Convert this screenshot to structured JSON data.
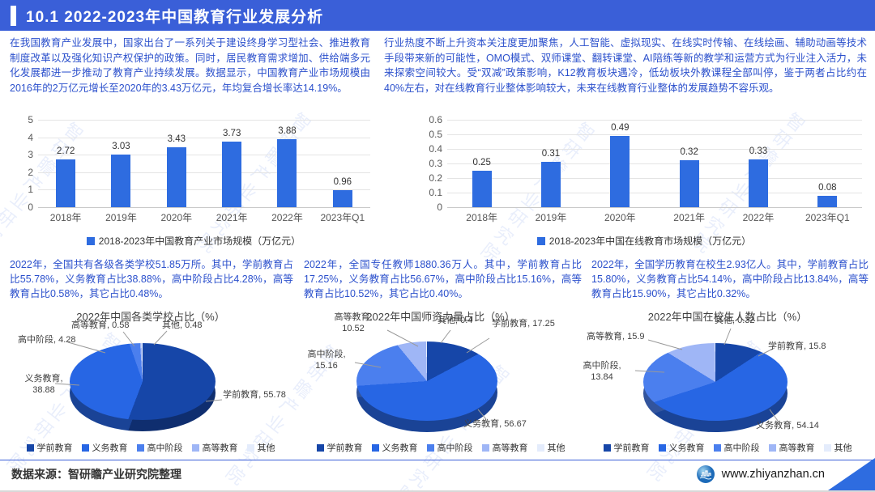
{
  "header": {
    "title": "10.1  2022-2023年中国教育行业发展分析"
  },
  "intro": {
    "left": "在我国教育产业发展中，国家出台了一系列关于建设终身学习型社会、推进教育制度改革以及强化知识产权保护的政策。同时，居民教育需求增加、供给端多元化发展都进一步推动了教育产业持续发展。数据显示，中国教育产业市场规模由2016年的2万亿元增长至2020年的3.43万亿元，年均复合增长率达14.19%。",
    "right": "行业热度不断上升资本关注度更加聚焦，人工智能、虚拟现实、在线实时传输、在线绘画、辅助动画等技术手段带来新的可能性，OMO模式、双师课堂、翻转课堂、AI陪练等新的教学和运营方式为行业注入活力，未来探索空间较大。受“双减”政策影响，K12教育板块遇冷，低幼板块外教课程全部叫停，鉴于两者占比约在40%左右，对在线教育行业整体影响较大，未来在线教育行业整体的发展趋势不容乐观。"
  },
  "notes": {
    "schools": "2022年，全国共有各级各类学校51.85万所。其中，学前教育占比55.78%，义务教育占比38.88%，高中阶段占比4.28%，高等教育占比0.58%，其它占比0.48%。",
    "teachers": "2022年，全国专任教师1880.36万人。其中，学前教育占比17.25%，义务教育占比56.67%，高中阶段占比15.16%，高等教育占比10.52%，其它占比0.40%。",
    "students": "2022年，全国学历教育在校生2.93亿人。其中，学前教育占比15.80%，义务教育占比54.14%，高中阶段占比13.84%，高等教育占比15.90%，其它占比0.32%。"
  },
  "chart_data": [
    {
      "type": "bar",
      "title": "2018-2023年中国教育产业市场规模（万亿元）",
      "legend": "2018-2023年中国教育产业市场规模（万亿元）",
      "categories": [
        "2018年",
        "2019年",
        "2020年",
        "2021年",
        "2022年",
        "2023年Q1"
      ],
      "values": [
        2.72,
        3.03,
        3.43,
        3.73,
        3.88,
        0.96
      ],
      "ylim": [
        0,
        5
      ],
      "yticks": [
        5,
        4,
        3,
        2,
        1,
        0
      ],
      "grid": true,
      "legend_position": "bottom"
    },
    {
      "type": "bar",
      "title": "2018-2023年中国在线教育市场规模（万亿元）",
      "legend": "2018-2023年中国在线教育市场规模（万亿元）",
      "categories": [
        "2018年",
        "2019年",
        "2020年",
        "2021年",
        "2022年",
        "2023年Q1"
      ],
      "values": [
        0.25,
        0.31,
        0.49,
        0.32,
        0.33,
        0.08
      ],
      "ylim": [
        0,
        0.6
      ],
      "yticks": [
        0.6,
        0.5,
        0.4,
        0.3,
        0.2,
        0.1,
        0
      ],
      "grid": true,
      "legend_position": "bottom"
    },
    {
      "type": "pie",
      "title": "2022年中国各类学校占比（%）",
      "labels": [
        "学前教育",
        "义务教育",
        "高中阶段",
        "高等教育",
        "其他"
      ],
      "values": [
        55.78,
        38.88,
        4.28,
        0.58,
        0.48
      ],
      "labels_display": [
        "学前教育, 55.78",
        "义务教育, 38.88",
        "高中阶段, 4.28",
        "高等教育, 0.58",
        "其他, 0.48"
      ],
      "style": "3d-pie"
    },
    {
      "type": "pie",
      "title": "2022年中国师资力量占比（%）",
      "labels": [
        "学前教育",
        "义务教育",
        "高中阶段",
        "高等教育",
        "其他"
      ],
      "values": [
        17.25,
        56.67,
        15.16,
        10.52,
        0.4
      ],
      "labels_display": [
        "学前教育, 17.25",
        "义务教育, 56.67",
        "高中阶段, 15.16",
        "高等教育, 10.52",
        "其他, 0.4"
      ],
      "style": "3d-pie"
    },
    {
      "type": "pie",
      "title": "2022年中国在校生人数占比（%）",
      "labels": [
        "学前教育",
        "义务教育",
        "高中阶段",
        "高等教育",
        "其他"
      ],
      "values": [
        15.8,
        54.14,
        13.84,
        15.9,
        0.32
      ],
      "labels_display": [
        "学前教育, 15.8",
        "义务教育, 54.14",
        "高中阶段, 13.84",
        "高等教育, 15.9",
        "其他, 0.32"
      ],
      "style": "3d-pie"
    }
  ],
  "pie_legend": [
    "学前教育",
    "义务教育",
    "高中阶段",
    "高等教育",
    "其他"
  ],
  "colors": {
    "header": "#3a5fd8",
    "bar": "#2e6ce0",
    "pie": [
      "#1646a8",
      "#2766e4",
      "#4b7fee",
      "#9fb6f6",
      "#e4ecfc"
    ],
    "text_blue": "#2b50cc",
    "triangle": "#2e6ce0"
  },
  "footer": {
    "source": "数据来源：智研瞻产业研究院整理",
    "site": "www.zhiyanzhan.cn"
  },
  "watermark": "智研瞻产业研究院"
}
